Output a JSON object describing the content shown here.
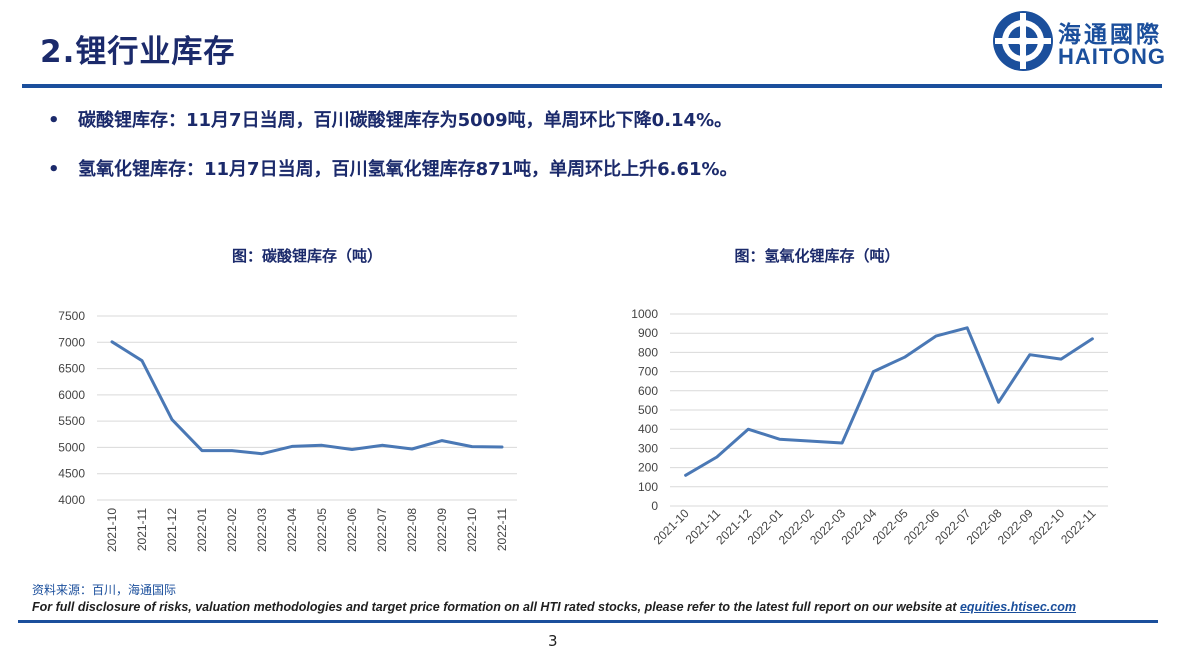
{
  "slide": {
    "title": "2.锂行业库存",
    "logo_cn": "海通國際",
    "logo_en": "HAITONG",
    "bullets": [
      "碳酸锂库存：11月7日当周，百川碳酸锂库存为5009吨，单周环比下降0.14%。",
      "氢氧化锂库存：11月7日当周，百川氢氧化锂库存871吨，单周环比上升6.61%。"
    ],
    "source": "资料来源：百川，海通国际",
    "disclosure_text": "For full disclosure of risks, valuation methodologies and target price formation on all HTI rated stocks, please refer to the latest full report on our website at ",
    "disclosure_link": "equities.htisec.com",
    "page_number": "3"
  },
  "colors": {
    "brand": "#1b4f9c",
    "title": "#1b2a6b",
    "series": "#4a78b5",
    "grid": "#d9d9d9"
  },
  "chart_data": [
    {
      "type": "line",
      "title": "图：碳酸锂库存（吨）",
      "x": [
        "2021-10",
        "2021-11",
        "2021-12",
        "2022-01",
        "2022-02",
        "2022-03",
        "2022-04",
        "2022-05",
        "2022-06",
        "2022-07",
        "2022-08",
        "2022-09",
        "2022-10",
        "2022-11"
      ],
      "series": [
        {
          "values": [
            7010,
            6650,
            5530,
            4940,
            4940,
            4880,
            5020,
            5040,
            4960,
            5040,
            4970,
            5130,
            5015,
            5009
          ]
        }
      ],
      "yticks": [
        4000,
        4500,
        5000,
        5500,
        6000,
        6500,
        7000,
        7500
      ],
      "ylim": [
        4000,
        7500
      ],
      "grid": true,
      "xlabel_rotation": "vertical"
    },
    {
      "type": "line",
      "title": "图：氢氧化锂库存（吨）",
      "x": [
        "2021-10",
        "2021-11",
        "2021-12",
        "2022-01",
        "2022-02",
        "2022-03",
        "2022-04",
        "2022-05",
        "2022-06",
        "2022-07",
        "2022-08",
        "2022-09",
        "2022-10",
        "2022-11"
      ],
      "series": [
        {
          "values": [
            160,
            255,
            400,
            348,
            338,
            328,
            700,
            775,
            885,
            928,
            540,
            788,
            765,
            871
          ]
        }
      ],
      "yticks": [
        0,
        100,
        200,
        300,
        400,
        500,
        600,
        700,
        800,
        900,
        1000
      ],
      "ylim": [
        0,
        1000
      ],
      "grid": true,
      "xlabel_rotation": "diagonal"
    }
  ]
}
